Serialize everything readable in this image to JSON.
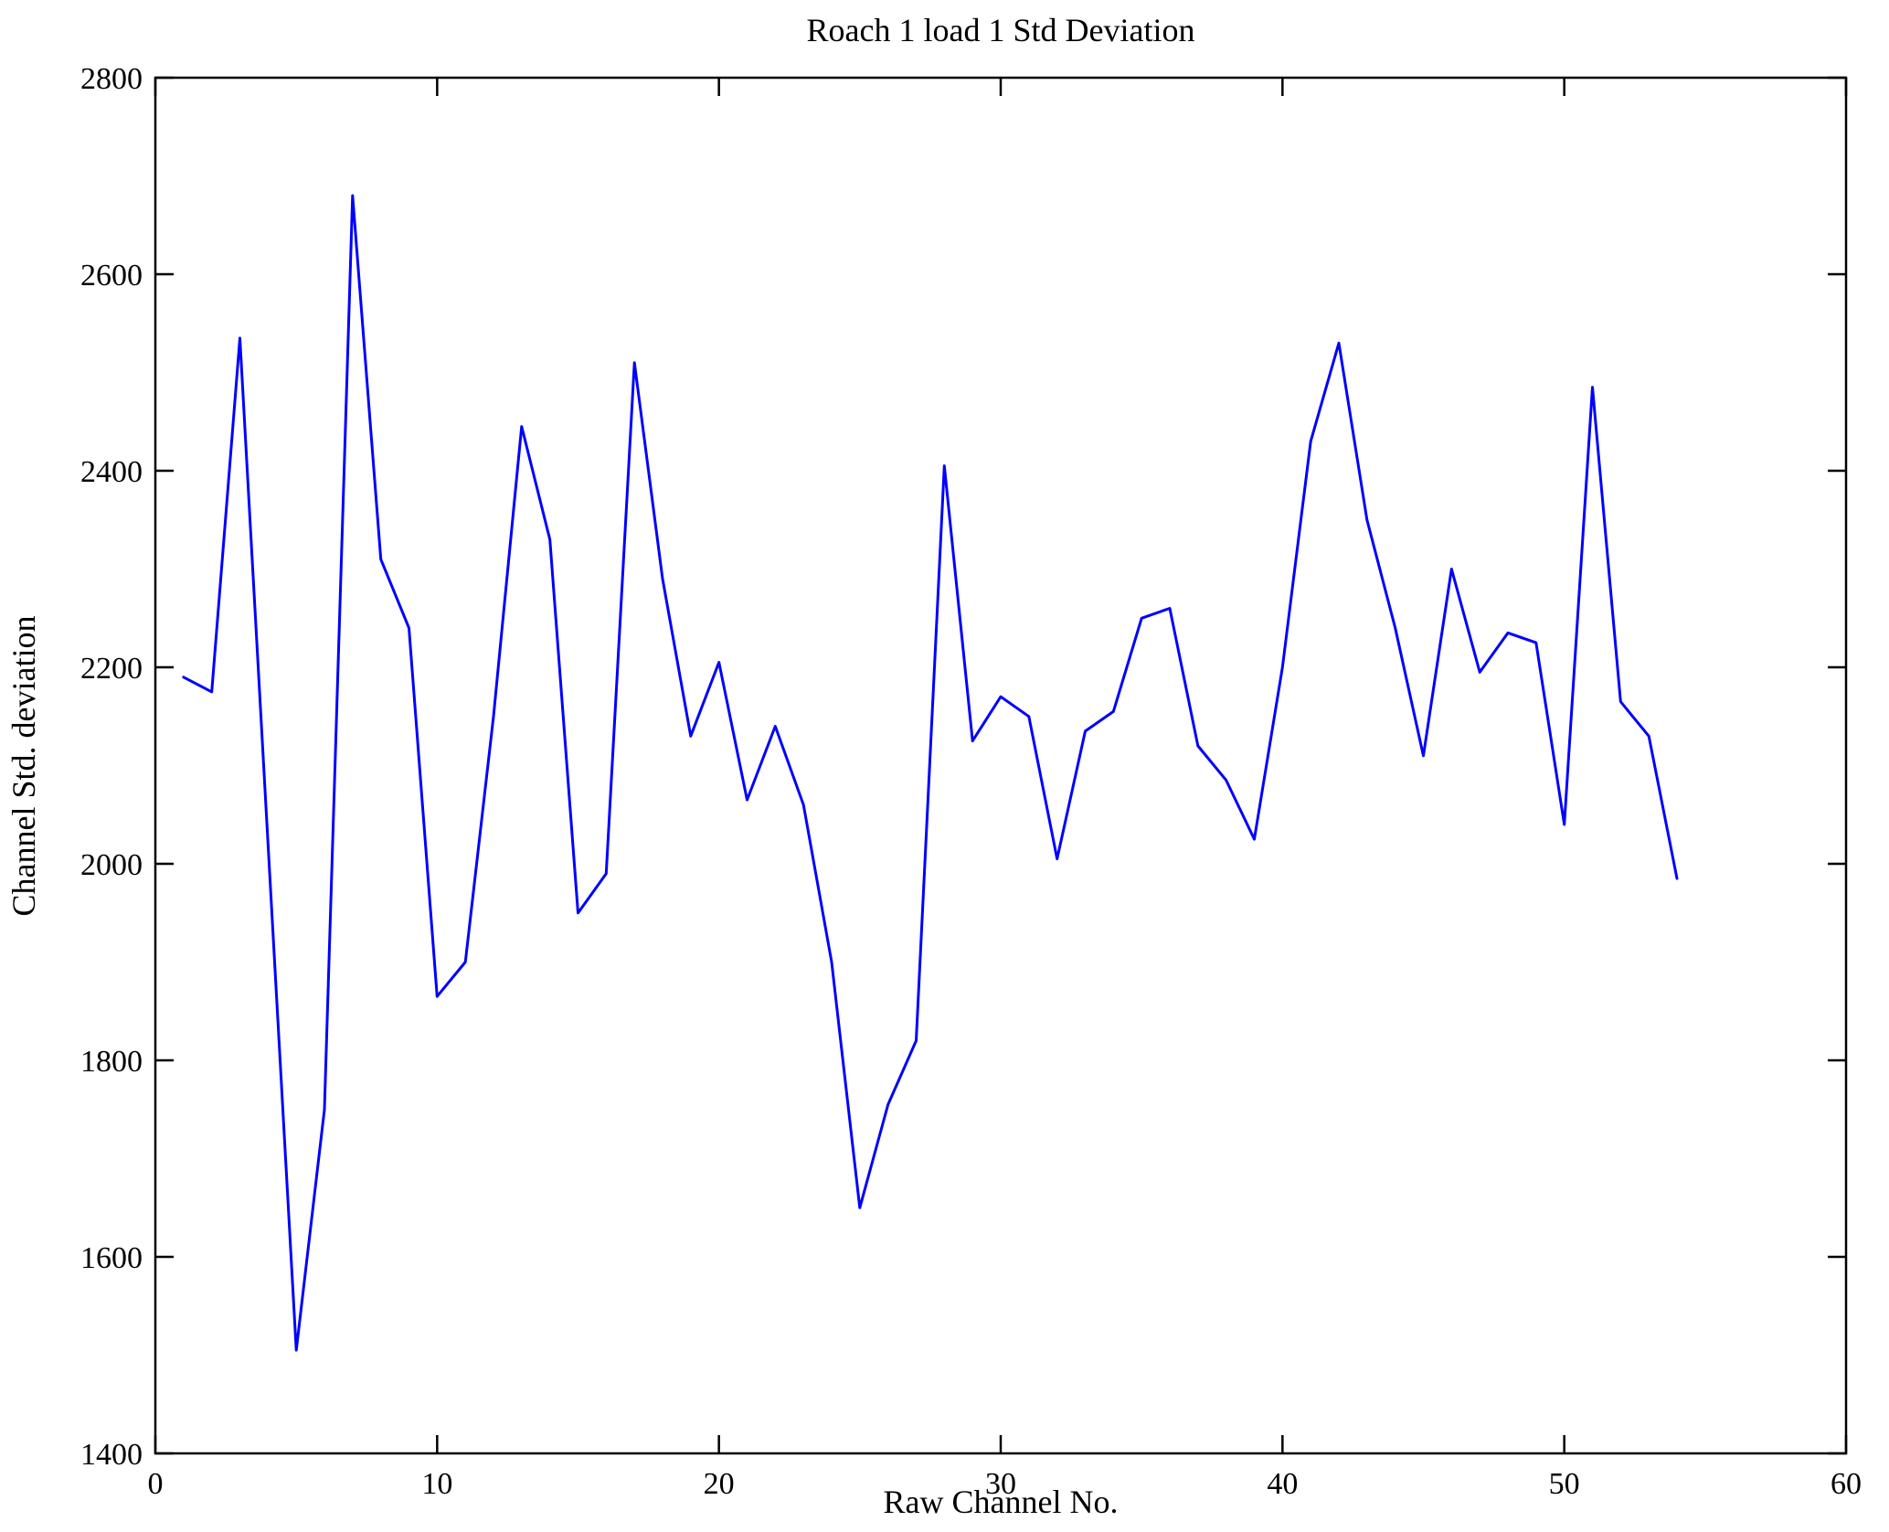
{
  "chart_data": {
    "type": "line",
    "title": "Roach 1 load 1 Std Deviation",
    "xlabel": "Raw Channel No.",
    "ylabel": "Channel Std. deviation",
    "xlim": [
      0,
      60
    ],
    "ylim": [
      1400,
      2800
    ],
    "xticks": [
      0,
      10,
      20,
      30,
      40,
      50,
      60
    ],
    "yticks": [
      1400,
      1600,
      1800,
      2000,
      2200,
      2400,
      2600,
      2800
    ],
    "grid": false,
    "legend": null,
    "line_color": "#0000ff",
    "frame_color": "#000000",
    "x": [
      1,
      2,
      3,
      4,
      5,
      6,
      7,
      8,
      9,
      10,
      11,
      12,
      13,
      14,
      15,
      16,
      17,
      18,
      19,
      20,
      21,
      22,
      23,
      24,
      25,
      26,
      27,
      28,
      29,
      30,
      31,
      32,
      33,
      34,
      35,
      36,
      37,
      38,
      39,
      40,
      41,
      42,
      43,
      44,
      45,
      46,
      47,
      48,
      49,
      50,
      51,
      52,
      53,
      54
    ],
    "y": [
      2190,
      2175,
      2535,
      2020,
      1505,
      1750,
      2680,
      2310,
      2240,
      1865,
      1900,
      2150,
      2445,
      2330,
      1950,
      1990,
      2510,
      2290,
      2130,
      2205,
      2065,
      2140,
      2060,
      1900,
      1650,
      1755,
      1820,
      2405,
      2125,
      2170,
      2150,
      2005,
      2135,
      2155,
      2250,
      2260,
      2120,
      2085,
      2025,
      2200,
      2430,
      2530,
      2350,
      2240,
      2110,
      2300,
      2195,
      2235,
      2225,
      2040,
      2485,
      2165,
      2130,
      1985
    ]
  }
}
